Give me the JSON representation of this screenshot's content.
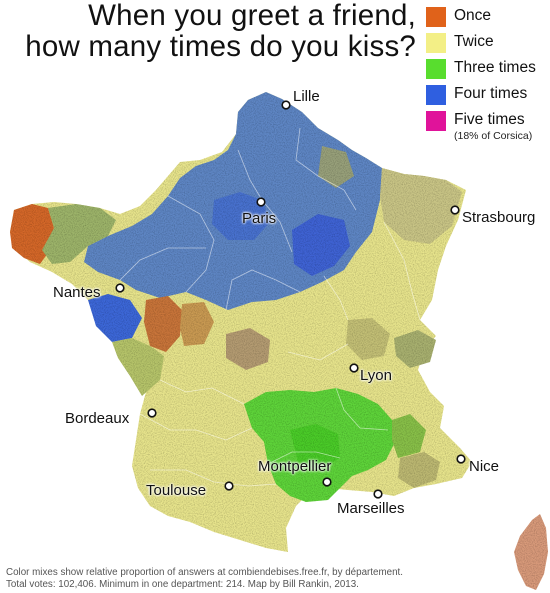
{
  "title": {
    "line1": "When you greet a friend,",
    "line2": "how many times do you kiss?"
  },
  "legend": {
    "items": [
      {
        "label": "Once",
        "color": "#e0621a"
      },
      {
        "label": "Twice",
        "color": "#f3ef86"
      },
      {
        "label": "Three times",
        "color": "#58dd2e"
      },
      {
        "label": "Four times",
        "color": "#2f5fe0"
      },
      {
        "label": "Five times",
        "color": "#e0139a",
        "note": "(18% of Corsica)"
      }
    ]
  },
  "cities": [
    {
      "name": "Lille"
    },
    {
      "name": "Paris"
    },
    {
      "name": "Strasbourg"
    },
    {
      "name": "Nantes"
    },
    {
      "name": "Lyon"
    },
    {
      "name": "Bordeaux"
    },
    {
      "name": "Nice"
    },
    {
      "name": "Montpellier"
    },
    {
      "name": "Toulouse"
    },
    {
      "name": "Marseilles"
    }
  ],
  "footer": {
    "line1": "Color mixes show relative proportion of answers at combiendebises.free.fr, by département.",
    "line2": "Total votes: 102,406. Minimum in one department: 214. Map by Bill Rankin, 2013."
  }
}
